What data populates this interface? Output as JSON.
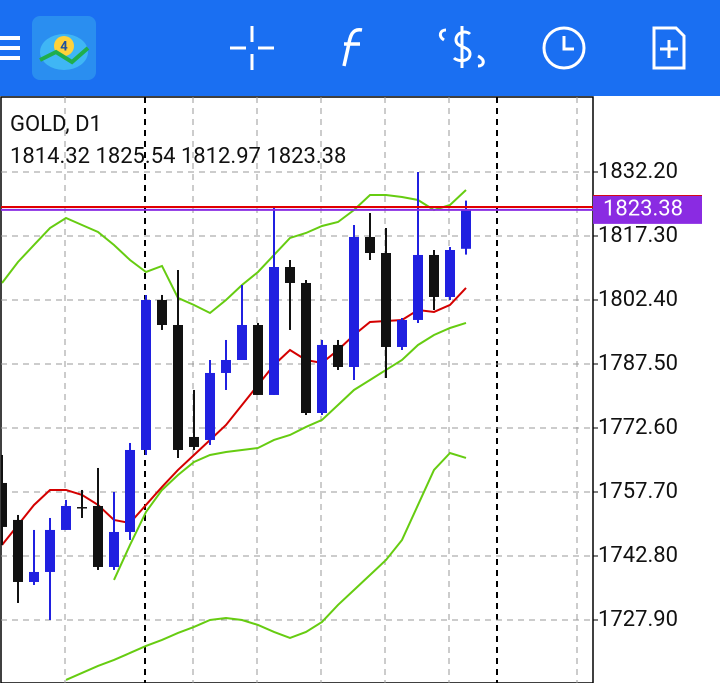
{
  "chart_data": {
    "type": "candlestick",
    "title": "GOLD, D1",
    "ylim": [
      1713.23,
      1849.66
    ],
    "yticks": [
      {
        "value": 1832.2,
        "label": "1832.20"
      },
      {
        "value": 1817.3,
        "label": "1817.30"
      },
      {
        "value": 1802.4,
        "label": "1802.40"
      },
      {
        "value": 1787.5,
        "label": "1787.50"
      },
      {
        "value": 1772.6,
        "label": "1772.60"
      },
      {
        "value": 1757.7,
        "label": "1757.70"
      },
      {
        "value": 1742.8,
        "label": "1742.80"
      },
      {
        "value": 1727.9,
        "label": "1727.90"
      }
    ],
    "grid": true,
    "bull_color": "#2020e0",
    "bear_color": "#111111",
    "price_color": "#8a2be2",
    "ask_line": {
      "value": 1824.05,
      "color": "#e00000"
    },
    "candles": [
      {
        "open": 1759.8,
        "high": 1766.32,
        "low": 1745.37,
        "close": 1749.56
      },
      {
        "open": 1751.19,
        "high": 1752.35,
        "low": 1731.86,
        "close": 1736.75
      },
      {
        "open": 1736.75,
        "high": 1748.86,
        "low": 1736.05,
        "close": 1739.08
      },
      {
        "open": 1739.08,
        "high": 1751.65,
        "low": 1727.9,
        "close": 1748.86
      },
      {
        "open": 1748.86,
        "high": 1755.84,
        "low": 1748.86,
        "close": 1754.44
      },
      {
        "open": 1754.2,
        "high": 1758.17,
        "low": 1751.65,
        "close": 1753.9
      },
      {
        "open": 1754.44,
        "high": 1763.29,
        "low": 1739.55,
        "close": 1740.24
      },
      {
        "open": 1740.24,
        "high": 1757.7,
        "low": 1739.55,
        "close": 1748.39
      },
      {
        "open": 1748.39,
        "high": 1769.11,
        "low": 1746.53,
        "close": 1767.48
      },
      {
        "open": 1767.48,
        "high": 1803.57,
        "low": 1766.32,
        "close": 1802.4
      },
      {
        "open": 1802.4,
        "high": 1803.57,
        "low": 1795.42,
        "close": 1796.58
      },
      {
        "open": 1796.58,
        "high": 1809.39,
        "low": 1765.62,
        "close": 1767.48
      },
      {
        "open": 1770.51,
        "high": 1781.45,
        "low": 1767.48,
        "close": 1768.18
      },
      {
        "open": 1769.81,
        "high": 1788.43,
        "low": 1768.65,
        "close": 1785.41
      },
      {
        "open": 1785.41,
        "high": 1793.09,
        "low": 1781.45,
        "close": 1788.43
      },
      {
        "open": 1788.43,
        "high": 1805.89,
        "low": 1788.43,
        "close": 1796.58
      },
      {
        "open": 1796.58,
        "high": 1797.05,
        "low": 1780.29,
        "close": 1780.29
      },
      {
        "open": 1780.29,
        "high": 1823.82,
        "low": 1780.29,
        "close": 1810.08
      },
      {
        "open": 1810.08,
        "high": 1811.71,
        "low": 1795.42,
        "close": 1806.36
      },
      {
        "open": 1806.36,
        "high": 1807.06,
        "low": 1775.63,
        "close": 1776.09
      },
      {
        "open": 1776.09,
        "high": 1793.09,
        "low": 1775.63,
        "close": 1791.93
      },
      {
        "open": 1791.93,
        "high": 1793.09,
        "low": 1786.11,
        "close": 1786.8
      },
      {
        "open": 1786.8,
        "high": 1819.86,
        "low": 1783.78,
        "close": 1817.07
      },
      {
        "open": 1817.07,
        "high": 1822.65,
        "low": 1811.71,
        "close": 1813.34
      },
      {
        "open": 1813.34,
        "high": 1819.16,
        "low": 1784.24,
        "close": 1791.46
      },
      {
        "open": 1791.46,
        "high": 1798.21,
        "low": 1790.76,
        "close": 1797.75
      },
      {
        "open": 1797.75,
        "high": 1832.2,
        "low": 1797.05,
        "close": 1812.88
      },
      {
        "open": 1812.88,
        "high": 1814.04,
        "low": 1800.07,
        "close": 1803.1
      },
      {
        "open": 1803.1,
        "high": 1814.74,
        "low": 1802.4,
        "close": 1814.04
      },
      {
        "open": 1814.32,
        "high": 1825.54,
        "low": 1812.97,
        "close": 1823.38
      }
    ],
    "indicators": [
      {
        "color": "#66cc11",
        "values": [
          1806.36,
          1811.25,
          1815.21,
          1819.16,
          1821.49,
          1819.86,
          1818.23,
          1815.21,
          1811.71,
          1808.92,
          1810.32,
          1802.87,
          1801.24,
          1799.38,
          1802.4,
          1805.89,
          1808.92,
          1812.88,
          1816.84,
          1818.0,
          1819.63,
          1820.56,
          1823.35,
          1826.85,
          1826.85,
          1826.38,
          1825.68,
          1823.35,
          1824.52,
          1828.01
        ]
      },
      {
        "color": "#66cc11",
        "values": [
          null,
          null,
          null,
          null,
          null,
          null,
          null,
          1737.22,
          1745.37,
          1753.05,
          1758.17,
          1761.66,
          1764.69,
          1766.32,
          1767.02,
          1767.48,
          1767.95,
          1769.81,
          1770.97,
          1772.84,
          1774.47,
          1777.96,
          1781.45,
          1783.78,
          1786.11,
          1788.43,
          1791.93,
          1794.25,
          1795.88,
          1797.05
        ]
      },
      {
        "color": "#66cc11",
        "values": [
          null,
          null,
          null,
          null,
          1713.94,
          1715.57,
          1717.2,
          1718.59,
          1720.22,
          1721.85,
          1723.25,
          1724.88,
          1726.28,
          1727.9,
          1728.37,
          1727.9,
          1726.74,
          1725.11,
          1723.72,
          1725.11,
          1727.44,
          1731.4,
          1734.89,
          1738.38,
          1741.87,
          1746.53,
          1754.68,
          1762.83,
          1766.78,
          1765.62
        ]
      },
      {
        "color": "#d40000",
        "values": [
          1745.37,
          1750.02,
          1754.68,
          1758.17,
          1758.17,
          1757.01,
          1754.68,
          1751.19,
          1750.49,
          1754.68,
          1758.87,
          1762.83,
          1766.32,
          1769.81,
          1773.3,
          1777.96,
          1782.61,
          1787.27,
          1790.76,
          1788.43,
          1787.74,
          1790.76,
          1794.25,
          1797.28,
          1797.51,
          1797.75,
          1800.07,
          1799.61,
          1801.24,
          1805.2
        ]
      }
    ]
  }
}
